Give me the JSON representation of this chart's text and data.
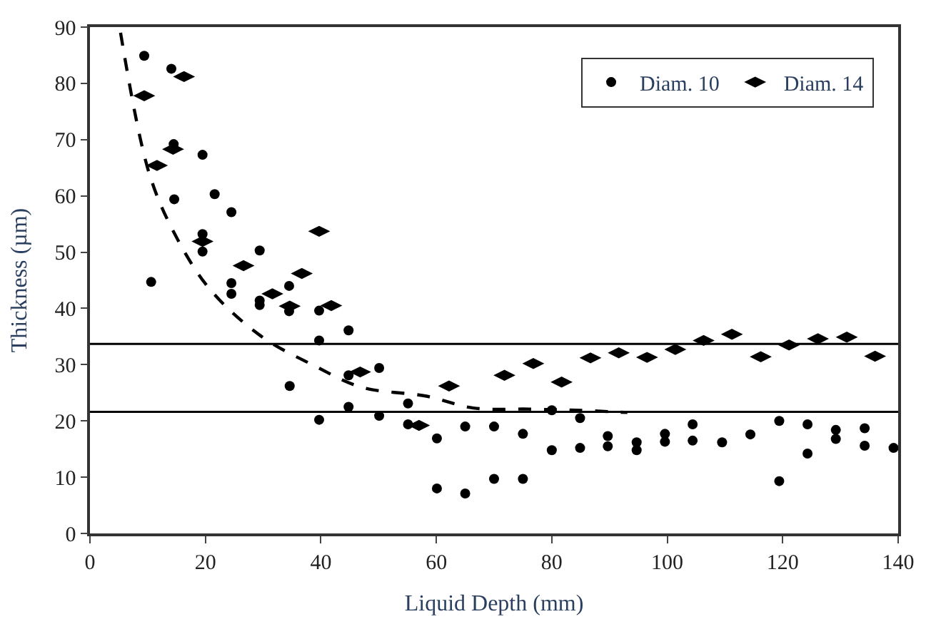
{
  "chart_data": {
    "type": "scatter",
    "xlabel": "Liquid Depth (mm)",
    "ylabel": "Thickness (µm)",
    "xlim": [
      0,
      140
    ],
    "xticks": [
      0,
      20,
      40,
      60,
      80,
      100,
      120,
      140
    ],
    "ylim": [
      0,
      90
    ],
    "yticks": [
      0,
      10,
      20,
      30,
      40,
      50,
      60,
      70,
      80,
      90
    ],
    "legend": "top right",
    "series": [
      {
        "name": "Diam. 10",
        "color": "#000000",
        "marker": "circle",
        "x": [
          9.4,
          10.6,
          14.1,
          14.5,
          14.6,
          19.5,
          19.5,
          19.5,
          21.6,
          24.5,
          24.5,
          24.5,
          29.4,
          29.4,
          29.4,
          34.5,
          34.5,
          34.6,
          39.7,
          39.7,
          39.7,
          44.8,
          44.8,
          44.8,
          50.1,
          50.1,
          55.1,
          55.1,
          60.1,
          60.1,
          65,
          65,
          70,
          70,
          75,
          75,
          80,
          80,
          84.9,
          84.9,
          89.7,
          89.7,
          94.7,
          94.7,
          99.6,
          99.6,
          104.4,
          104.4,
          109.5,
          114.4,
          119.4,
          119.4,
          124.3,
          124.3,
          129.2,
          129.2,
          134.2,
          134.2,
          139.2
        ],
        "values": [
          84.9,
          44.7,
          82.6,
          69.2,
          59.4,
          67.3,
          53.2,
          50.1,
          60.3,
          57.1,
          44.5,
          42.6,
          50.3,
          41.4,
          40.6,
          44.0,
          39.5,
          26.2,
          39.6,
          34.3,
          20.2,
          36.1,
          28.1,
          22.5,
          29.4,
          20.9,
          23.1,
          19.4,
          16.9,
          8.0,
          19.0,
          7.1,
          19.0,
          9.7,
          17.7,
          9.7,
          21.9,
          14.8,
          20.5,
          15.2,
          17.3,
          15.5,
          16.2,
          14.8,
          17.7,
          16.3,
          19.4,
          16.5,
          16.2,
          17.6,
          20.0,
          9.3,
          19.4,
          14.2,
          18.4,
          16.8,
          18.7,
          15.6,
          15.2
        ]
      },
      {
        "name": "Diam. 14",
        "color": "#000000",
        "marker": "diamond",
        "x": [
          9.4,
          11.6,
          14.4,
          16.3,
          19.5,
          26.6,
          31.6,
          34.6,
          36.7,
          39.7,
          41.8,
          46.8,
          57,
          62.2,
          71.8,
          76.8,
          81.7,
          86.7,
          91.6,
          96.5,
          101.4,
          106.3,
          111.2,
          116.2,
          121.1,
          126.1,
          131.1,
          136
        ],
        "values": [
          77.8,
          65.4,
          68.3,
          81.2,
          51.9,
          47.6,
          42.6,
          40.4,
          46.2,
          53.7,
          40.5,
          28.7,
          19.2,
          26.2,
          28.1,
          30.2,
          26.9,
          31.2,
          32.1,
          31.3,
          32.7,
          34.3,
          35.4,
          31.4,
          33.5,
          34.6,
          34.9,
          31.5
        ]
      },
      {
        "type": "line",
        "color": "#000000",
        "line_style": "dashed",
        "x": [
          5.3,
          10.2,
          14.6,
          20.7,
          29.6,
          38.9,
          47,
          58.3,
          66.4,
          76.1,
          84.2,
          93.1
        ],
        "values": [
          89,
          64.2,
          53.4,
          43.5,
          35.1,
          29.8,
          26,
          24.4,
          22.3,
          22.1,
          21.9,
          21.5
        ]
      }
    ],
    "ref_lines": [
      {
        "axis": "y",
        "value": 33.7,
        "color": "#000000"
      },
      {
        "axis": "y",
        "value": 21.6,
        "color": "#000000"
      }
    ]
  }
}
